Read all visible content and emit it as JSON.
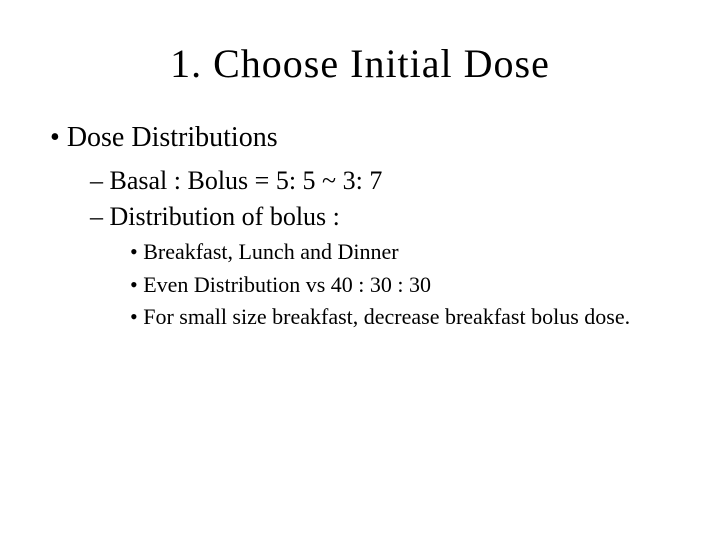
{
  "title": "1. Choose Initial Dose",
  "bullets": {
    "l1_dose_distributions": "Dose Distributions",
    "l2_basal_bolus": "Basal : Bolus = 5: 5 ~ 3: 7",
    "l2_distribution_bolus": "Distribution of bolus :",
    "l3_meals": "Breakfast, Lunch and Dinner",
    "l3_even_distribution": "Even Distribution vs 40 : 30 : 30",
    "l3_small_breakfast": "For small size breakfast, decrease breakfast bolus dose."
  },
  "style": {
    "background_color": "#ffffff",
    "text_color": "#000000",
    "title_fontsize": 40,
    "l1_fontsize": 28,
    "l2_fontsize": 26,
    "l3_fontsize": 22,
    "font_family": "Georgia, Times New Roman, serif"
  }
}
